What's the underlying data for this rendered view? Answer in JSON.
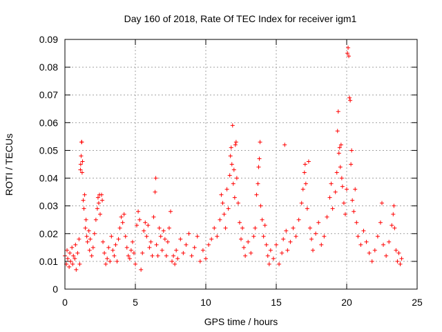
{
  "chart_data": {
    "type": "scatter",
    "title": "Day 160 of 2018, Rate Of TEC Index for receiver igm1",
    "xlabel": "GPS time / hours",
    "ylabel": "ROTI / TECUs",
    "xlim": [
      0,
      25
    ],
    "ylim": [
      0,
      0.09
    ],
    "grid": true,
    "marker": "+",
    "marker_color": "#ff0000",
    "x_ticks": [
      0,
      5,
      10,
      15,
      20,
      25
    ],
    "x_tick_labels": [
      "0",
      "5",
      "10",
      "15",
      "20",
      "25"
    ],
    "y_ticks": [
      0,
      0.01,
      0.02,
      0.03,
      0.04,
      0.05,
      0.06,
      0.07,
      0.08,
      0.09
    ],
    "y_tick_labels": [
      "0",
      "0.01",
      "0.02",
      "0.03",
      "0.04",
      "0.05",
      "0.06",
      "0.07",
      "0.08",
      "0.09"
    ],
    "series": [
      {
        "name": "ROTI",
        "points": [
          [
            0.0,
            0.012
          ],
          [
            0.1,
            0.009
          ],
          [
            0.15,
            0.014
          ],
          [
            0.2,
            0.011
          ],
          [
            0.3,
            0.008
          ],
          [
            0.35,
            0.013
          ],
          [
            0.4,
            0.01
          ],
          [
            0.5,
            0.015
          ],
          [
            0.55,
            0.009
          ],
          [
            0.6,
            0.012
          ],
          [
            0.7,
            0.011
          ],
          [
            0.75,
            0.016
          ],
          [
            0.8,
            0.007
          ],
          [
            0.9,
            0.013
          ],
          [
            1.0,
            0.018
          ],
          [
            1.05,
            0.009
          ],
          [
            1.1,
            0.043
          ],
          [
            1.12,
            0.045
          ],
          [
            1.15,
            0.048
          ],
          [
            1.18,
            0.053
          ],
          [
            1.2,
            0.053
          ],
          [
            1.22,
            0.042
          ],
          [
            1.25,
            0.046
          ],
          [
            1.3,
            0.032
          ],
          [
            1.35,
            0.029
          ],
          [
            1.4,
            0.034
          ],
          [
            1.45,
            0.022
          ],
          [
            1.5,
            0.025
          ],
          [
            1.55,
            0.019
          ],
          [
            1.6,
            0.017
          ],
          [
            1.7,
            0.021
          ],
          [
            1.75,
            0.014
          ],
          [
            1.8,
            0.018
          ],
          [
            1.9,
            0.012
          ],
          [
            2.0,
            0.015
          ],
          [
            2.1,
            0.02
          ],
          [
            2.2,
            0.025
          ],
          [
            2.3,
            0.029
          ],
          [
            2.35,
            0.033
          ],
          [
            2.4,
            0.031
          ],
          [
            2.45,
            0.034
          ],
          [
            2.5,
            0.027
          ],
          [
            2.6,
            0.034
          ],
          [
            2.65,
            0.032
          ],
          [
            2.7,
            0.017
          ],
          [
            2.8,
            0.013
          ],
          [
            2.9,
            0.009
          ],
          [
            3.0,
            0.011
          ],
          [
            3.1,
            0.015
          ],
          [
            3.2,
            0.01
          ],
          [
            3.3,
            0.019
          ],
          [
            3.4,
            0.014
          ],
          [
            3.5,
            0.012
          ],
          [
            3.6,
            0.016
          ],
          [
            3.7,
            0.01
          ],
          [
            3.8,
            0.018
          ],
          [
            3.9,
            0.022
          ],
          [
            4.0,
            0.026
          ],
          [
            4.1,
            0.024
          ],
          [
            4.2,
            0.027
          ],
          [
            4.3,
            0.019
          ],
          [
            4.4,
            0.015
          ],
          [
            4.5,
            0.012
          ],
          [
            4.6,
            0.011
          ],
          [
            4.7,
            0.014
          ],
          [
            4.8,
            0.017
          ],
          [
            4.9,
            0.013
          ],
          [
            5.0,
            0.009
          ],
          [
            5.1,
            0.023
          ],
          [
            5.2,
            0.028
          ],
          [
            5.3,
            0.025
          ],
          [
            5.4,
            0.007
          ],
          [
            5.5,
            0.013
          ],
          [
            5.6,
            0.021
          ],
          [
            5.7,
            0.024
          ],
          [
            5.8,
            0.019
          ],
          [
            5.9,
            0.023
          ],
          [
            6.0,
            0.015
          ],
          [
            6.1,
            0.017
          ],
          [
            6.2,
            0.012
          ],
          [
            6.3,
            0.026
          ],
          [
            6.4,
            0.035
          ],
          [
            6.45,
            0.04
          ],
          [
            6.5,
            0.016
          ],
          [
            6.6,
            0.012
          ],
          [
            6.7,
            0.022
          ],
          [
            6.8,
            0.019
          ],
          [
            6.9,
            0.014
          ],
          [
            7.0,
            0.021
          ],
          [
            7.1,
            0.018
          ],
          [
            7.2,
            0.012
          ],
          [
            7.3,
            0.017
          ],
          [
            7.4,
            0.022
          ],
          [
            7.5,
            0.028
          ],
          [
            7.6,
            0.01
          ],
          [
            7.7,
            0.012
          ],
          [
            7.8,
            0.009
          ],
          [
            7.9,
            0.014
          ],
          [
            8.0,
            0.011
          ],
          [
            8.2,
            0.018
          ],
          [
            8.4,
            0.013
          ],
          [
            8.6,
            0.016
          ],
          [
            8.8,
            0.02
          ],
          [
            9.0,
            0.012
          ],
          [
            9.2,
            0.015
          ],
          [
            9.4,
            0.019
          ],
          [
            9.6,
            0.01
          ],
          [
            9.8,
            0.014
          ],
          [
            10.0,
            0.011
          ],
          [
            10.2,
            0.016
          ],
          [
            10.4,
            0.018
          ],
          [
            10.6,
            0.022
          ],
          [
            10.8,
            0.019
          ],
          [
            11.0,
            0.025
          ],
          [
            11.1,
            0.034
          ],
          [
            11.2,
            0.031
          ],
          [
            11.3,
            0.027
          ],
          [
            11.4,
            0.022
          ],
          [
            11.5,
            0.036
          ],
          [
            11.6,
            0.029
          ],
          [
            11.7,
            0.041
          ],
          [
            11.75,
            0.048
          ],
          [
            11.8,
            0.051
          ],
          [
            11.85,
            0.045
          ],
          [
            11.9,
            0.059
          ],
          [
            11.95,
            0.038
          ],
          [
            12.0,
            0.043
          ],
          [
            12.05,
            0.033
          ],
          [
            12.1,
            0.052
          ],
          [
            12.15,
            0.053
          ],
          [
            12.2,
            0.04
          ],
          [
            12.3,
            0.031
          ],
          [
            12.4,
            0.024
          ],
          [
            12.5,
            0.018
          ],
          [
            12.6,
            0.022
          ],
          [
            12.7,
            0.015
          ],
          [
            12.8,
            0.012
          ],
          [
            13.0,
            0.017
          ],
          [
            13.2,
            0.013
          ],
          [
            13.4,
            0.019
          ],
          [
            13.5,
            0.022
          ],
          [
            13.6,
            0.034
          ],
          [
            13.7,
            0.038
          ],
          [
            13.75,
            0.044
          ],
          [
            13.8,
            0.047
          ],
          [
            13.85,
            0.053
          ],
          [
            13.9,
            0.03
          ],
          [
            14.0,
            0.025
          ],
          [
            14.1,
            0.019
          ],
          [
            14.2,
            0.023
          ],
          [
            14.3,
            0.016
          ],
          [
            14.4,
            0.012
          ],
          [
            14.5,
            0.009
          ],
          [
            14.6,
            0.014
          ],
          [
            14.8,
            0.011
          ],
          [
            15.0,
            0.016
          ],
          [
            15.2,
            0.009
          ],
          [
            15.4,
            0.013
          ],
          [
            15.5,
            0.018
          ],
          [
            15.6,
            0.052
          ],
          [
            15.7,
            0.021
          ],
          [
            15.8,
            0.014
          ],
          [
            16.0,
            0.017
          ],
          [
            16.2,
            0.022
          ],
          [
            16.4,
            0.019
          ],
          [
            16.6,
            0.025
          ],
          [
            16.8,
            0.031
          ],
          [
            16.9,
            0.036
          ],
          [
            17.0,
            0.042
          ],
          [
            17.05,
            0.045
          ],
          [
            17.1,
            0.038
          ],
          [
            17.2,
            0.029
          ],
          [
            17.3,
            0.046
          ],
          [
            17.4,
            0.022
          ],
          [
            17.5,
            0.018
          ],
          [
            17.6,
            0.014
          ],
          [
            17.8,
            0.02
          ],
          [
            18.0,
            0.024
          ],
          [
            18.2,
            0.016
          ],
          [
            18.4,
            0.019
          ],
          [
            18.6,
            0.026
          ],
          [
            18.8,
            0.033
          ],
          [
            18.9,
            0.038
          ],
          [
            19.0,
            0.029
          ],
          [
            19.2,
            0.035
          ],
          [
            19.3,
            0.042
          ],
          [
            19.35,
            0.057
          ],
          [
            19.4,
            0.064
          ],
          [
            19.45,
            0.049
          ],
          [
            19.5,
            0.051
          ],
          [
            19.55,
            0.044
          ],
          [
            19.6,
            0.052
          ],
          [
            19.65,
            0.04
          ],
          [
            19.7,
            0.037
          ],
          [
            19.8,
            0.031
          ],
          [
            19.9,
            0.027
          ],
          [
            20.0,
            0.036
          ],
          [
            20.05,
            0.085
          ],
          [
            20.1,
            0.087
          ],
          [
            20.15,
            0.084
          ],
          [
            20.2,
            0.069
          ],
          [
            20.25,
            0.068
          ],
          [
            20.3,
            0.045
          ],
          [
            20.35,
            0.05
          ],
          [
            20.4,
            0.032
          ],
          [
            20.5,
            0.028
          ],
          [
            20.6,
            0.036
          ],
          [
            20.7,
            0.024
          ],
          [
            20.8,
            0.019
          ],
          [
            21.0,
            0.016
          ],
          [
            21.2,
            0.021
          ],
          [
            21.4,
            0.017
          ],
          [
            21.6,
            0.013
          ],
          [
            21.8,
            0.01
          ],
          [
            22.0,
            0.014
          ],
          [
            22.2,
            0.019
          ],
          [
            22.4,
            0.024
          ],
          [
            22.5,
            0.031
          ],
          [
            22.6,
            0.016
          ],
          [
            22.8,
            0.012
          ],
          [
            23.0,
            0.017
          ],
          [
            23.2,
            0.023
          ],
          [
            23.3,
            0.027
          ],
          [
            23.35,
            0.03
          ],
          [
            23.4,
            0.022
          ],
          [
            23.5,
            0.014
          ],
          [
            23.6,
            0.01
          ],
          [
            23.7,
            0.013
          ],
          [
            23.8,
            0.009
          ],
          [
            23.9,
            0.011
          ]
        ]
      }
    ]
  }
}
